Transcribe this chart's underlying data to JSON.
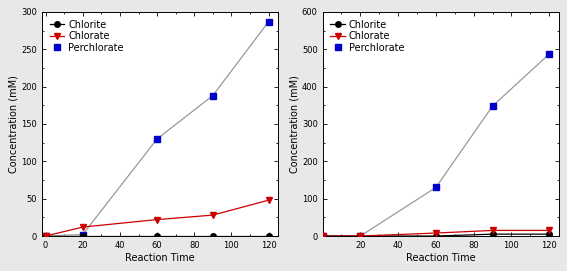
{
  "left": {
    "x": [
      0,
      20,
      60,
      90,
      120
    ],
    "chlorite": [
      0,
      0,
      0,
      0,
      0
    ],
    "chlorate": [
      0,
      12,
      22,
      28,
      48
    ],
    "perchlorate": [
      0,
      2,
      130,
      188,
      287
    ],
    "ylim": [
      0,
      300
    ],
    "yticks": [
      0,
      50,
      100,
      150,
      200,
      250,
      300
    ],
    "xlim": [
      -2,
      125
    ],
    "xticks": [
      0,
      20,
      40,
      60,
      80,
      100,
      120
    ],
    "ylabel": "Concentration (mM)",
    "xlabel": "Reaction Time"
  },
  "right": {
    "x": [
      0,
      20,
      60,
      90,
      120
    ],
    "chlorite": [
      0,
      0,
      0,
      5,
      5
    ],
    "chlorate": [
      0,
      0,
      8,
      15,
      15
    ],
    "perchlorate": [
      0,
      0,
      130,
      348,
      487
    ],
    "ylim": [
      0,
      600
    ],
    "yticks": [
      0,
      100,
      200,
      300,
      400,
      500,
      600
    ],
    "xlim": [
      0,
      125
    ],
    "xticks": [
      20,
      40,
      60,
      80,
      100,
      120
    ],
    "ylabel": "Concentration (mM)",
    "xlabel": "Reaction Time"
  },
  "legend_labels": [
    "Chlorite",
    "Chlorate",
    "Perchlorate"
  ],
  "chlorite_color": "#000000",
  "chlorate_color": "#cc0000",
  "perchlorate_color": "#0000cc",
  "line_color": "#999999",
  "bg_color": "#ffffff",
  "outer_bg": "#e8e8e8",
  "fontsize": 7,
  "legend_fontsize": 7,
  "marker_size": 4,
  "linewidth": 0.9
}
